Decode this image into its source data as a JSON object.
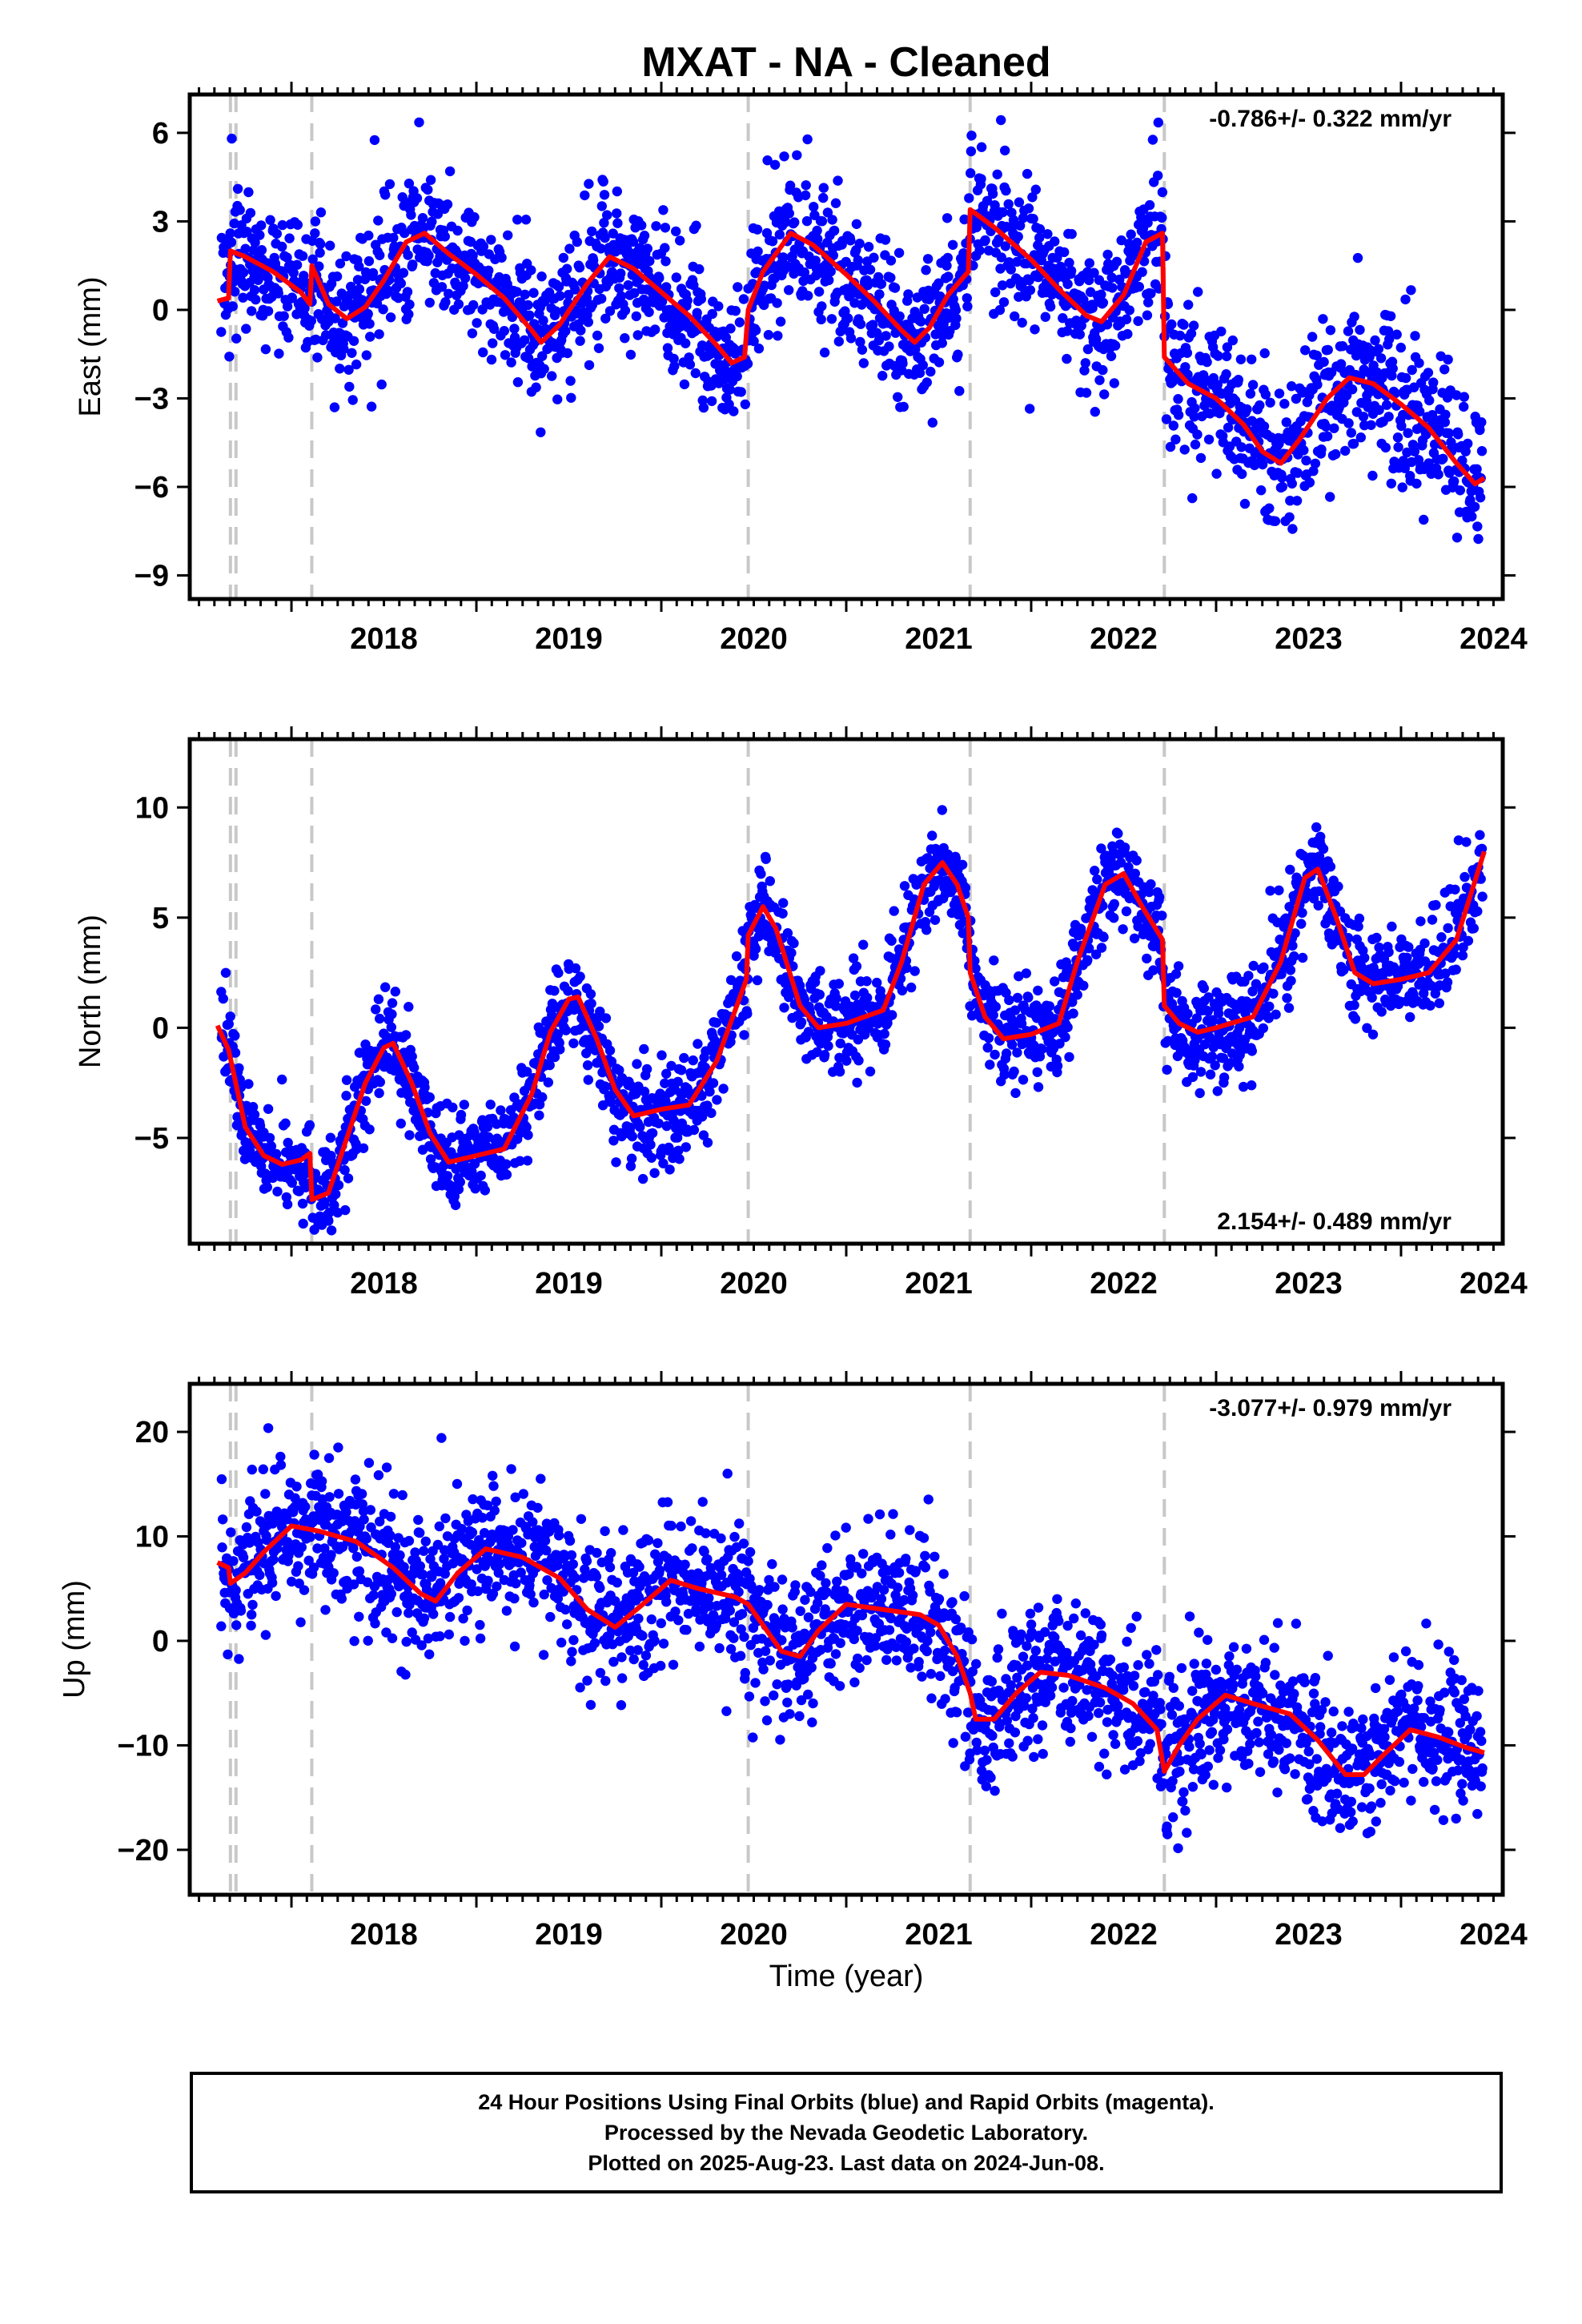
{
  "title": "MXAT  - NA - Cleaned",
  "xlabel": "Time (year)",
  "footer": [
    "24 Hour Positions Using Final Orbits (blue) and Rapid Orbits (magenta).",
    "Processed by the Nevada Geodetic Laboratory.",
    "Plotted on 2025-Aug-23. Last data on 2024-Jun-08."
  ],
  "colors": {
    "points": "#0000ff",
    "model": "#ff0000",
    "steps": "#c8c8c8"
  },
  "chart_data": [
    {
      "type": "scatter",
      "component": "east",
      "ylabel": "East (mm)",
      "rate_text": "-0.786+/- 0.322 mm/yr",
      "xlim": [
        2017.45,
        2024.55
      ],
      "ylim": [
        -9.8,
        7.3
      ],
      "xticks": [
        2018,
        2019,
        2020,
        2021,
        2022,
        2023,
        2024
      ],
      "yticks": [
        6,
        3,
        0,
        -3,
        -6,
        -9
      ],
      "ytick_labels": [
        "6",
        "3",
        "0",
        "−3",
        "−6",
        "−9"
      ],
      "step_lines": [
        2017.67,
        2017.7,
        2018.11,
        2020.47,
        2021.67,
        2022.72
      ],
      "scatter_sd": 1.2,
      "model": [
        [
          2017.6,
          0.3
        ],
        [
          2017.66,
          0.4
        ],
        [
          2017.67,
          2.0
        ],
        [
          2017.75,
          1.8
        ],
        [
          2017.9,
          1.3
        ],
        [
          2018.05,
          0.6
        ],
        [
          2018.1,
          0.2
        ],
        [
          2018.11,
          1.5
        ],
        [
          2018.2,
          0.2
        ],
        [
          2018.3,
          -0.3
        ],
        [
          2018.4,
          0.1
        ],
        [
          2018.5,
          1.0
        ],
        [
          2018.62,
          2.3
        ],
        [
          2018.72,
          2.6
        ],
        [
          2018.85,
          1.9
        ],
        [
          2019.0,
          1.2
        ],
        [
          2019.15,
          0.4
        ],
        [
          2019.3,
          -0.7
        ],
        [
          2019.35,
          -1.1
        ],
        [
          2019.45,
          -0.5
        ],
        [
          2019.6,
          0.9
        ],
        [
          2019.72,
          1.8
        ],
        [
          2019.85,
          1.4
        ],
        [
          2020.0,
          0.6
        ],
        [
          2020.15,
          -0.2
        ],
        [
          2020.3,
          -1.2
        ],
        [
          2020.38,
          -1.8
        ],
        [
          2020.45,
          -1.6
        ],
        [
          2020.47,
          0.0
        ],
        [
          2020.55,
          1.3
        ],
        [
          2020.7,
          2.6
        ],
        [
          2020.82,
          2.2
        ],
        [
          2021.0,
          1.2
        ],
        [
          2021.15,
          0.3
        ],
        [
          2021.3,
          -0.7
        ],
        [
          2021.37,
          -1.1
        ],
        [
          2021.45,
          -0.6
        ],
        [
          2021.55,
          0.5
        ],
        [
          2021.66,
          1.3
        ],
        [
          2021.67,
          3.4
        ],
        [
          2021.8,
          2.8
        ],
        [
          2022.0,
          1.7
        ],
        [
          2022.15,
          0.7
        ],
        [
          2022.3,
          -0.2
        ],
        [
          2022.38,
          -0.4
        ],
        [
          2022.5,
          0.5
        ],
        [
          2022.62,
          2.3
        ],
        [
          2022.71,
          2.6
        ],
        [
          2022.72,
          -1.6
        ],
        [
          2022.85,
          -2.5
        ],
        [
          2023.0,
          -3.0
        ],
        [
          2023.15,
          -3.9
        ],
        [
          2023.25,
          -4.8
        ],
        [
          2023.35,
          -5.2
        ],
        [
          2023.45,
          -4.4
        ],
        [
          2023.6,
          -3.0
        ],
        [
          2023.72,
          -2.3
        ],
        [
          2023.85,
          -2.5
        ],
        [
          2024.0,
          -3.2
        ],
        [
          2024.15,
          -4.0
        ],
        [
          2024.3,
          -5.2
        ],
        [
          2024.4,
          -5.9
        ],
        [
          2024.45,
          -5.7
        ]
      ]
    },
    {
      "type": "scatter",
      "component": "north",
      "ylabel": "North (mm)",
      "rate_text": "2.154+/- 0.489 mm/yr",
      "xlim": [
        2017.45,
        2024.55
      ],
      "ylim": [
        -9.8,
        13.1
      ],
      "xticks": [
        2018,
        2019,
        2020,
        2021,
        2022,
        2023,
        2024
      ],
      "yticks": [
        10,
        5,
        0,
        -5
      ],
      "ytick_labels": [
        "10",
        "5",
        "0",
        "−5"
      ],
      "step_lines": [
        2017.67,
        2017.7,
        2018.11,
        2020.47,
        2021.67,
        2022.72
      ],
      "scatter_sd": 1.1,
      "model": [
        [
          2017.6,
          0.1
        ],
        [
          2017.66,
          -1.0
        ],
        [
          2017.75,
          -4.5
        ],
        [
          2017.85,
          -5.8
        ],
        [
          2017.95,
          -6.2
        ],
        [
          2018.05,
          -6.0
        ],
        [
          2018.1,
          -5.7
        ],
        [
          2018.11,
          -7.8
        ],
        [
          2018.2,
          -7.5
        ],
        [
          2018.3,
          -5.0
        ],
        [
          2018.4,
          -2.5
        ],
        [
          2018.5,
          -0.9
        ],
        [
          2018.55,
          -0.7
        ],
        [
          2018.65,
          -2.5
        ],
        [
          2018.75,
          -4.8
        ],
        [
          2018.85,
          -6.1
        ],
        [
          2019.0,
          -5.8
        ],
        [
          2019.15,
          -5.5
        ],
        [
          2019.3,
          -3.0
        ],
        [
          2019.4,
          -0.2
        ],
        [
          2019.5,
          1.3
        ],
        [
          2019.55,
          1.4
        ],
        [
          2019.65,
          -0.5
        ],
        [
          2019.75,
          -2.8
        ],
        [
          2019.85,
          -4.0
        ],
        [
          2020.0,
          -3.7
        ],
        [
          2020.15,
          -3.5
        ],
        [
          2020.3,
          -1.5
        ],
        [
          2020.46,
          2.2
        ],
        [
          2020.47,
          4.2
        ],
        [
          2020.55,
          5.5
        ],
        [
          2020.62,
          4.5
        ],
        [
          2020.75,
          1.0
        ],
        [
          2020.85,
          0.0
        ],
        [
          2021.0,
          0.2
        ],
        [
          2021.2,
          0.8
        ],
        [
          2021.3,
          3.0
        ],
        [
          2021.42,
          6.5
        ],
        [
          2021.52,
          7.5
        ],
        [
          2021.6,
          6.5
        ],
        [
          2021.66,
          5.0
        ],
        [
          2021.67,
          2.5
        ],
        [
          2021.75,
          0.5
        ],
        [
          2021.85,
          -0.5
        ],
        [
          2022.0,
          -0.3
        ],
        [
          2022.15,
          0.2
        ],
        [
          2022.25,
          3.0
        ],
        [
          2022.4,
          6.5
        ],
        [
          2022.5,
          7.0
        ],
        [
          2022.6,
          5.5
        ],
        [
          2022.71,
          4.0
        ],
        [
          2022.72,
          1.0
        ],
        [
          2022.8,
          0.2
        ],
        [
          2022.9,
          -0.2
        ],
        [
          2023.0,
          0.0
        ],
        [
          2023.2,
          0.5
        ],
        [
          2023.35,
          3.0
        ],
        [
          2023.48,
          6.8
        ],
        [
          2023.55,
          7.2
        ],
        [
          2023.65,
          5.0
        ],
        [
          2023.75,
          2.5
        ],
        [
          2023.85,
          2.0
        ],
        [
          2024.0,
          2.2
        ],
        [
          2024.15,
          2.5
        ],
        [
          2024.3,
          4.0
        ],
        [
          2024.45,
          8.0
        ]
      ]
    },
    {
      "type": "scatter",
      "component": "up",
      "ylabel": "Up (mm)",
      "rate_text": "-3.077+/- 0.979 mm/yr",
      "xlim": [
        2017.45,
        2024.55
      ],
      "ylim": [
        -24.3,
        24.6
      ],
      "xticks": [
        2018,
        2019,
        2020,
        2021,
        2022,
        2023,
        2024
      ],
      "yticks": [
        20,
        10,
        0,
        -10,
        -20
      ],
      "ytick_labels": [
        "20",
        "10",
        "0",
        "−10",
        "−20"
      ],
      "step_lines": [
        2017.67,
        2017.7,
        2018.11,
        2020.47,
        2021.67,
        2022.72
      ],
      "scatter_sd": 3.4,
      "model": [
        [
          2017.6,
          7.5
        ],
        [
          2017.66,
          7.0
        ],
        [
          2017.67,
          5.5
        ],
        [
          2017.75,
          6.5
        ],
        [
          2017.85,
          8.5
        ],
        [
          2018.0,
          11.0
        ],
        [
          2018.15,
          10.5
        ],
        [
          2018.35,
          9.5
        ],
        [
          2018.55,
          7.0
        ],
        [
          2018.7,
          4.5
        ],
        [
          2018.78,
          3.8
        ],
        [
          2018.9,
          6.5
        ],
        [
          2019.05,
          8.8
        ],
        [
          2019.25,
          8.0
        ],
        [
          2019.45,
          6.0
        ],
        [
          2019.6,
          3.0
        ],
        [
          2019.75,
          1.3
        ],
        [
          2019.9,
          3.5
        ],
        [
          2020.05,
          5.8
        ],
        [
          2020.2,
          5.0
        ],
        [
          2020.4,
          4.2
        ],
        [
          2020.47,
          3.5
        ],
        [
          2020.55,
          1.5
        ],
        [
          2020.65,
          -1.0
        ],
        [
          2020.75,
          -1.5
        ],
        [
          2020.85,
          1.0
        ],
        [
          2021.0,
          3.5
        ],
        [
          2021.2,
          3.0
        ],
        [
          2021.4,
          2.5
        ],
        [
          2021.5,
          1.5
        ],
        [
          2021.6,
          -1.5
        ],
        [
          2021.67,
          -5.0
        ],
        [
          2021.7,
          -7.5
        ],
        [
          2021.8,
          -7.5
        ],
        [
          2021.92,
          -5.0
        ],
        [
          2022.05,
          -3.0
        ],
        [
          2022.2,
          -3.3
        ],
        [
          2022.4,
          -4.5
        ],
        [
          2022.55,
          -6.0
        ],
        [
          2022.68,
          -8.5
        ],
        [
          2022.72,
          -12.5
        ],
        [
          2022.8,
          -10.0
        ],
        [
          2022.9,
          -7.5
        ],
        [
          2023.05,
          -5.2
        ],
        [
          2023.2,
          -6.0
        ],
        [
          2023.4,
          -7.0
        ],
        [
          2023.55,
          -9.5
        ],
        [
          2023.7,
          -12.8
        ],
        [
          2023.8,
          -12.8
        ],
        [
          2023.9,
          -11.0
        ],
        [
          2024.05,
          -8.5
        ],
        [
          2024.2,
          -9.2
        ],
        [
          2024.35,
          -10.2
        ],
        [
          2024.45,
          -10.7
        ]
      ]
    }
  ]
}
